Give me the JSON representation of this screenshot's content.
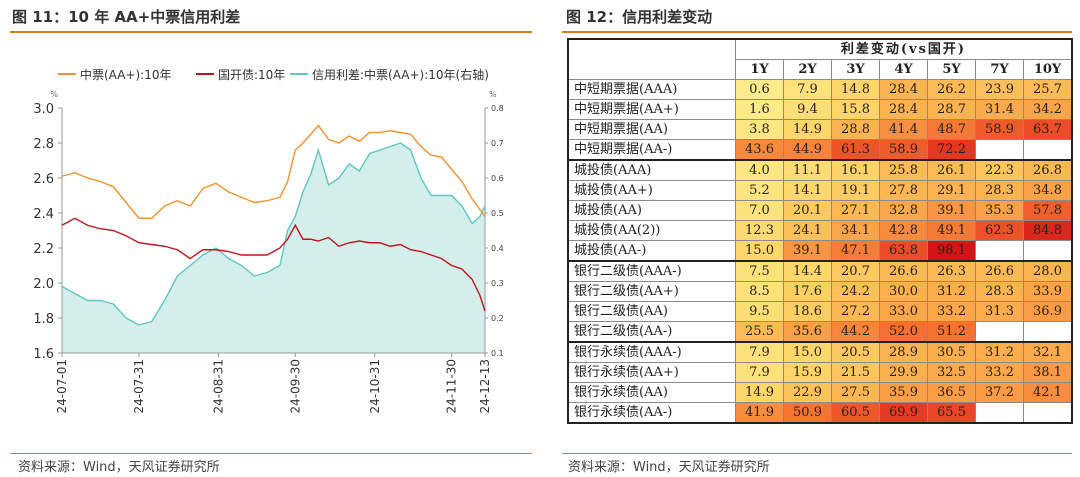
{
  "left_panel": {
    "title": "图 11：10 年 AA+中票信用利差",
    "source": "资料来源：Wind，天风证券研究所"
  },
  "right_panel": {
    "title": "图 12：信用利差变动",
    "source": "资料来源：Wind，天风证券研究所"
  },
  "colors": {
    "accent": "#e07a1f",
    "series_orange": "#f0922e",
    "series_red": "#c0141a",
    "series_teal": "#5fc6c2",
    "area_fill": "#d4eeec"
  },
  "chart_data": [
    {
      "type": "line",
      "legend": [
        "中票(AA+):10年",
        "国开债:10年",
        "信用利差:中票(AA+):10年(右轴)"
      ],
      "left_axis": {
        "unit": "%",
        "ylim": [
          1.6,
          3.0
        ],
        "ticks": [
          "1.6",
          "1.8",
          "2.0",
          "2.2",
          "2.4",
          "2.6",
          "2.8",
          "3.0"
        ]
      },
      "right_axis": {
        "unit": "%",
        "ylim": [
          0.1,
          0.8
        ],
        "ticks": [
          "0.1",
          "0.2",
          "0.3",
          "0.4",
          "0.5",
          "0.6",
          "0.7",
          "0.8"
        ]
      },
      "x_ticks": [
        "24-07-01",
        "24-07-31",
        "24-08-31",
        "24-09-30",
        "24-10-31",
        "24-11-30",
        "24-12-13"
      ],
      "x_tick_pos": [
        0,
        30,
        61,
        91,
        122,
        152,
        165
      ],
      "series": [
        {
          "name": "中票(AA+):10年",
          "axis": "left",
          "x": [
            0,
            5,
            10,
            15,
            20,
            25,
            30,
            35,
            40,
            45,
            50,
            55,
            60,
            65,
            70,
            75,
            80,
            85,
            88,
            91,
            94,
            97,
            100,
            104,
            108,
            112,
            116,
            120,
            124,
            128,
            132,
            136,
            140,
            144,
            148,
            152,
            156,
            160,
            163,
            165
          ],
          "y": [
            2.61,
            2.63,
            2.6,
            2.58,
            2.55,
            2.46,
            2.37,
            2.37,
            2.44,
            2.47,
            2.44,
            2.54,
            2.57,
            2.52,
            2.49,
            2.46,
            2.47,
            2.49,
            2.58,
            2.76,
            2.8,
            2.85,
            2.9,
            2.82,
            2.8,
            2.84,
            2.81,
            2.86,
            2.86,
            2.87,
            2.86,
            2.85,
            2.78,
            2.73,
            2.72,
            2.65,
            2.58,
            2.48,
            2.42,
            2.38
          ]
        },
        {
          "name": "国开债:10年",
          "axis": "left",
          "x": [
            0,
            5,
            10,
            15,
            20,
            25,
            30,
            35,
            40,
            45,
            50,
            55,
            60,
            65,
            70,
            75,
            80,
            85,
            88,
            91,
            94,
            97,
            100,
            104,
            108,
            112,
            116,
            120,
            124,
            128,
            132,
            136,
            140,
            144,
            148,
            152,
            156,
            160,
            163,
            165
          ],
          "y": [
            2.33,
            2.37,
            2.33,
            2.31,
            2.3,
            2.27,
            2.23,
            2.22,
            2.21,
            2.19,
            2.14,
            2.19,
            2.19,
            2.18,
            2.16,
            2.16,
            2.16,
            2.2,
            2.25,
            2.33,
            2.25,
            2.25,
            2.24,
            2.26,
            2.21,
            2.23,
            2.24,
            2.23,
            2.23,
            2.21,
            2.22,
            2.19,
            2.18,
            2.16,
            2.14,
            2.1,
            2.08,
            2.02,
            1.93,
            1.84
          ]
        },
        {
          "name": "信用利差:中票(AA+):10年(右轴)",
          "axis": "right",
          "x": [
            0,
            5,
            10,
            15,
            20,
            25,
            30,
            35,
            40,
            45,
            50,
            55,
            60,
            65,
            70,
            75,
            80,
            85,
            88,
            91,
            94,
            97,
            100,
            104,
            108,
            112,
            116,
            120,
            124,
            128,
            132,
            136,
            140,
            144,
            148,
            152,
            156,
            160,
            163,
            165
          ],
          "y": [
            0.29,
            0.27,
            0.25,
            0.25,
            0.24,
            0.2,
            0.18,
            0.19,
            0.25,
            0.32,
            0.35,
            0.38,
            0.4,
            0.37,
            0.35,
            0.32,
            0.33,
            0.35,
            0.45,
            0.49,
            0.56,
            0.61,
            0.68,
            0.58,
            0.6,
            0.64,
            0.62,
            0.67,
            0.68,
            0.69,
            0.7,
            0.68,
            0.6,
            0.55,
            0.55,
            0.55,
            0.52,
            0.47,
            0.49,
            0.52
          ]
        }
      ]
    },
    {
      "type": "heatmap",
      "title": "利差变动(vs国开)",
      "columns": [
        "1Y",
        "2Y",
        "3Y",
        "4Y",
        "5Y",
        "7Y",
        "10Y"
      ],
      "groups": [
        {
          "rows": [
            {
              "label": "中短期票据(AAA)",
              "values": [
                "0.6",
                "7.9",
                "14.8",
                "28.4",
                "26.2",
                "23.9",
                "25.7"
              ]
            },
            {
              "label": "中短期票据(AA+)",
              "values": [
                "1.6",
                "9.4",
                "15.8",
                "28.4",
                "28.7",
                "31.4",
                "34.2"
              ]
            },
            {
              "label": "中短期票据(AA)",
              "values": [
                "3.8",
                "14.9",
                "28.8",
                "41.4",
                "48.7",
                "58.9",
                "63.7"
              ]
            },
            {
              "label": "中短期票据(AA-)",
              "values": [
                "43.6",
                "44.9",
                "61.3",
                "58.9",
                "72.2",
                "",
                ""
              ]
            }
          ]
        },
        {
          "rows": [
            {
              "label": "城投债(AAA)",
              "values": [
                "4.0",
                "11.1",
                "16.1",
                "25.8",
                "26.1",
                "22.3",
                "26.8"
              ]
            },
            {
              "label": "城投债(AA+)",
              "values": [
                "5.2",
                "14.1",
                "19.1",
                "27.8",
                "29.1",
                "28.3",
                "34.8"
              ]
            },
            {
              "label": "城投债(AA)",
              "values": [
                "7.0",
                "20.1",
                "27.1",
                "32.8",
                "39.1",
                "35.3",
                "57.8"
              ]
            },
            {
              "label": "城投债(AA(2))",
              "values": [
                "12.3",
                "24.1",
                "34.1",
                "42.8",
                "49.1",
                "62.3",
                "84.8"
              ]
            },
            {
              "label": "城投债(AA-)",
              "values": [
                "15.0",
                "39.1",
                "47.1",
                "63.8",
                "98.1",
                "",
                ""
              ]
            }
          ]
        },
        {
          "rows": [
            {
              "label": "银行二级债(AAA-)",
              "values": [
                "7.5",
                "14.4",
                "20.7",
                "26.6",
                "26.3",
                "26.6",
                "28.0"
              ]
            },
            {
              "label": "银行二级债(AA+)",
              "values": [
                "8.5",
                "17.6",
                "24.2",
                "30.0",
                "31.2",
                "28.3",
                "33.9"
              ]
            },
            {
              "label": "银行二级债(AA)",
              "values": [
                "9.5",
                "18.6",
                "27.2",
                "33.0",
                "33.2",
                "31.3",
                "36.9"
              ]
            },
            {
              "label": "银行二级债(AA-)",
              "values": [
                "25.5",
                "35.6",
                "44.2",
                "52.0",
                "51.2",
                "",
                ""
              ]
            }
          ]
        },
        {
          "rows": [
            {
              "label": "银行永续债(AAA-)",
              "values": [
                "7.9",
                "15.0",
                "20.5",
                "28.9",
                "30.5",
                "31.2",
                "32.1"
              ]
            },
            {
              "label": "银行永续债(AA+)",
              "values": [
                "7.9",
                "15.9",
                "21.5",
                "29.9",
                "32.5",
                "33.2",
                "38.1"
              ]
            },
            {
              "label": "银行永续债(AA)",
              "values": [
                "14.9",
                "22.9",
                "27.5",
                "35.9",
                "36.5",
                "37.2",
                "42.1"
              ]
            },
            {
              "label": "银行永续债(AA-)",
              "values": [
                "41.9",
                "50.9",
                "60.5",
                "69.9",
                "65.5",
                "",
                ""
              ]
            }
          ]
        }
      ]
    }
  ]
}
